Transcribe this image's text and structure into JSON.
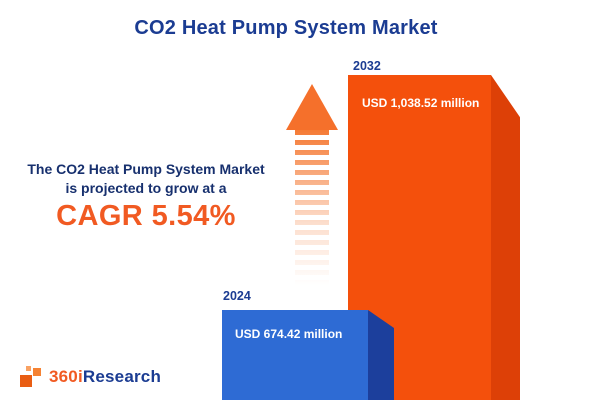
{
  "title": "CO2 Heat Pump System Market",
  "description": {
    "line1": "The CO2 Heat Pump System Market",
    "line2": "is projected to grow at a",
    "cagr_label": "CAGR 5.54%"
  },
  "chart_data": {
    "type": "bar",
    "title": "CO2 Heat Pump System Market",
    "categories": [
      "2024",
      "2032"
    ],
    "values": [
      674.42,
      1038.52
    ],
    "unit": "USD million",
    "value_labels": [
      "USD 674.42 million",
      "USD 1,038.52 million"
    ],
    "cagr_percent": 5.54,
    "bar_colors": [
      "#2E6BD4",
      "#F4500C"
    ],
    "bar_side_colors": [
      "#1C3F9C",
      "#DD4007"
    ],
    "legend": "none",
    "grid": false
  },
  "logo": {
    "prefix": "360i",
    "suffix": "Research"
  },
  "colors": {
    "title_navy": "#1B3C92",
    "accent_orange": "#F15A22",
    "bar_blue_front": "#2E6BD4",
    "bar_blue_side": "#1C3F9C",
    "bar_orange_front": "#F4500C",
    "bar_orange_side": "#DD4007",
    "arrow_orange": "#F5702B",
    "background": "#FFFFFF"
  }
}
